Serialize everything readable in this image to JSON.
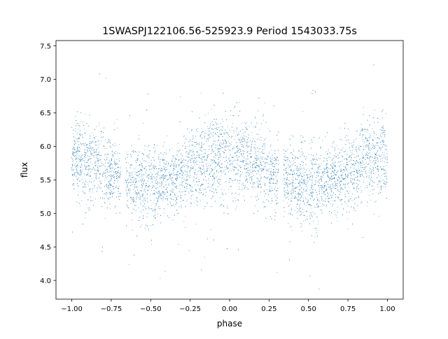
{
  "chart_data": {
    "type": "scatter",
    "title": "1SWASPJ122106.56-525923.9 Period 1543033.75s",
    "xlabel": "phase",
    "ylabel": "flux",
    "xlim": [
      -1.1,
      1.1
    ],
    "ylim": [
      3.72,
      7.58
    ],
    "xticks": [
      -1.0,
      -0.75,
      -0.5,
      -0.25,
      0.0,
      0.25,
      0.5,
      0.75,
      1.0
    ],
    "xtick_labels": [
      "−1.00",
      "−0.75",
      "−0.50",
      "−0.25",
      "0.00",
      "0.25",
      "0.50",
      "0.75",
      "1.00"
    ],
    "yticks": [
      4.0,
      4.5,
      5.0,
      5.5,
      6.0,
      6.5,
      7.0,
      7.5
    ],
    "ytick_labels": [
      "4.0",
      "4.5",
      "5.0",
      "5.5",
      "6.0",
      "6.5",
      "7.0",
      "7.5"
    ],
    "grid": false,
    "legend": "none",
    "point_color": "#1f77b4",
    "series_profile": {
      "phase": [
        -1.0,
        -0.9,
        -0.8,
        -0.7,
        -0.6,
        -0.5,
        -0.4,
        -0.3,
        -0.2,
        -0.1,
        0.0,
        0.1,
        0.2,
        0.3,
        0.4,
        0.5,
        0.6,
        0.7,
        0.8,
        0.9,
        1.0
      ],
      "median_flux": [
        5.82,
        5.78,
        5.66,
        5.58,
        5.45,
        5.4,
        5.45,
        5.55,
        5.7,
        5.82,
        5.85,
        5.8,
        5.7,
        5.58,
        5.45,
        5.4,
        5.45,
        5.55,
        5.7,
        5.82,
        5.85
      ],
      "spread": [
        0.3,
        0.3,
        0.28,
        0.27,
        0.27,
        0.3,
        0.27,
        0.26,
        0.27,
        0.3,
        0.3,
        0.3,
        0.28,
        0.27,
        0.27,
        0.3,
        0.27,
        0.26,
        0.27,
        0.3,
        0.3
      ]
    },
    "gaps": [
      [
        -0.69,
        -0.66
      ],
      [
        0.31,
        0.34
      ]
    ]
  }
}
